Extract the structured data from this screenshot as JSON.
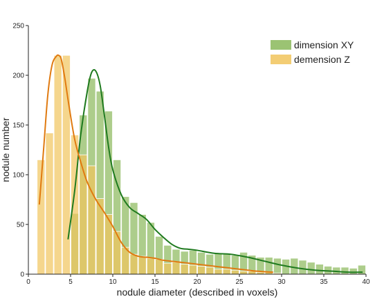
{
  "chart_data": {
    "type": "bar",
    "xlabel": "nodule diameter (described in voxels)",
    "ylabel": "nodule number",
    "xlim": [
      0,
      40
    ],
    "ylim": [
      0,
      250
    ],
    "x_ticks": [
      "0",
      "5",
      "10",
      "15",
      "20",
      "25",
      "30",
      "35",
      "40"
    ],
    "y_ticks": [
      "0",
      "50",
      "100",
      "150",
      "200",
      "250"
    ],
    "bin_width": 1,
    "legend_position": "top-right",
    "series": [
      {
        "name": "dimension XY",
        "color": "#8ab85a",
        "bins_start": [
          5,
          6,
          7,
          8,
          9,
          10,
          11,
          12,
          13,
          14,
          15,
          16,
          17,
          18,
          19,
          20,
          21,
          22,
          23,
          24,
          25,
          26,
          27,
          28,
          29,
          30,
          31,
          32,
          33,
          34,
          35,
          36,
          37,
          38,
          39
        ],
        "values": [
          61,
          160,
          197,
          184,
          164,
          115,
          78,
          72,
          60,
          52,
          38,
          29,
          25,
          23,
          24,
          22,
          20,
          21,
          21,
          19,
          22,
          19,
          17,
          17,
          16,
          15,
          16,
          14,
          12,
          10,
          8,
          7,
          7,
          6,
          9
        ],
        "kde_x": [
          4.7,
          5.5,
          6.2,
          7.0,
          7.5,
          8.0,
          8.5,
          9.0,
          9.5,
          10.0,
          11.0,
          12.0,
          13.0,
          14.0,
          15.0,
          16.0,
          17.0,
          18.0,
          19.0,
          20.0,
          22.0,
          24.0,
          26.0,
          28.0,
          30.0,
          32.0,
          34.0,
          36.0,
          38.0,
          39.6
        ],
        "kde_y": [
          35,
          85,
          140,
          185,
          203,
          204,
          190,
          160,
          128,
          105,
          80,
          67,
          61,
          55,
          45,
          37,
          30,
          26,
          25,
          24,
          21,
          20,
          17,
          13,
          9,
          6,
          4,
          3,
          2,
          2
        ]
      },
      {
        "name": "demension Z",
        "color": "#f1c45c",
        "bins_start": [
          1,
          2,
          3,
          4,
          5,
          6,
          7,
          8,
          9,
          10,
          11,
          12,
          13,
          14,
          15,
          16,
          17,
          18,
          19,
          20,
          21,
          22,
          23,
          24,
          25,
          26,
          27,
          28,
          29
        ],
        "values": [
          115,
          142,
          220,
          220,
          140,
          120,
          109,
          76,
          60,
          43,
          27,
          20,
          18,
          16,
          15,
          11,
          12,
          10,
          9,
          8,
          7,
          5,
          5,
          4,
          3,
          3,
          2,
          2,
          1
        ],
        "kde_x": [
          1.3,
          1.8,
          2.3,
          2.8,
          3.3,
          3.6,
          3.9,
          4.3,
          4.8,
          5.5,
          6.3,
          7.0,
          8.0,
          9.0,
          10.0,
          11.0,
          12.0,
          13.0,
          14.0,
          15.0,
          16.0,
          18.0,
          20.0,
          22.0,
          24.0,
          26.0,
          27.0,
          29.0
        ],
        "kde_y": [
          70,
          125,
          180,
          210,
          219,
          220,
          216,
          198,
          170,
          135,
          110,
          92,
          75,
          62,
          48,
          32,
          22,
          18,
          17,
          16,
          14,
          12,
          10,
          8,
          6,
          4,
          3,
          2
        ]
      }
    ]
  },
  "kde_colors": {
    "dimension XY": "#1f7a1f",
    "demension Z": "#e07a10"
  }
}
